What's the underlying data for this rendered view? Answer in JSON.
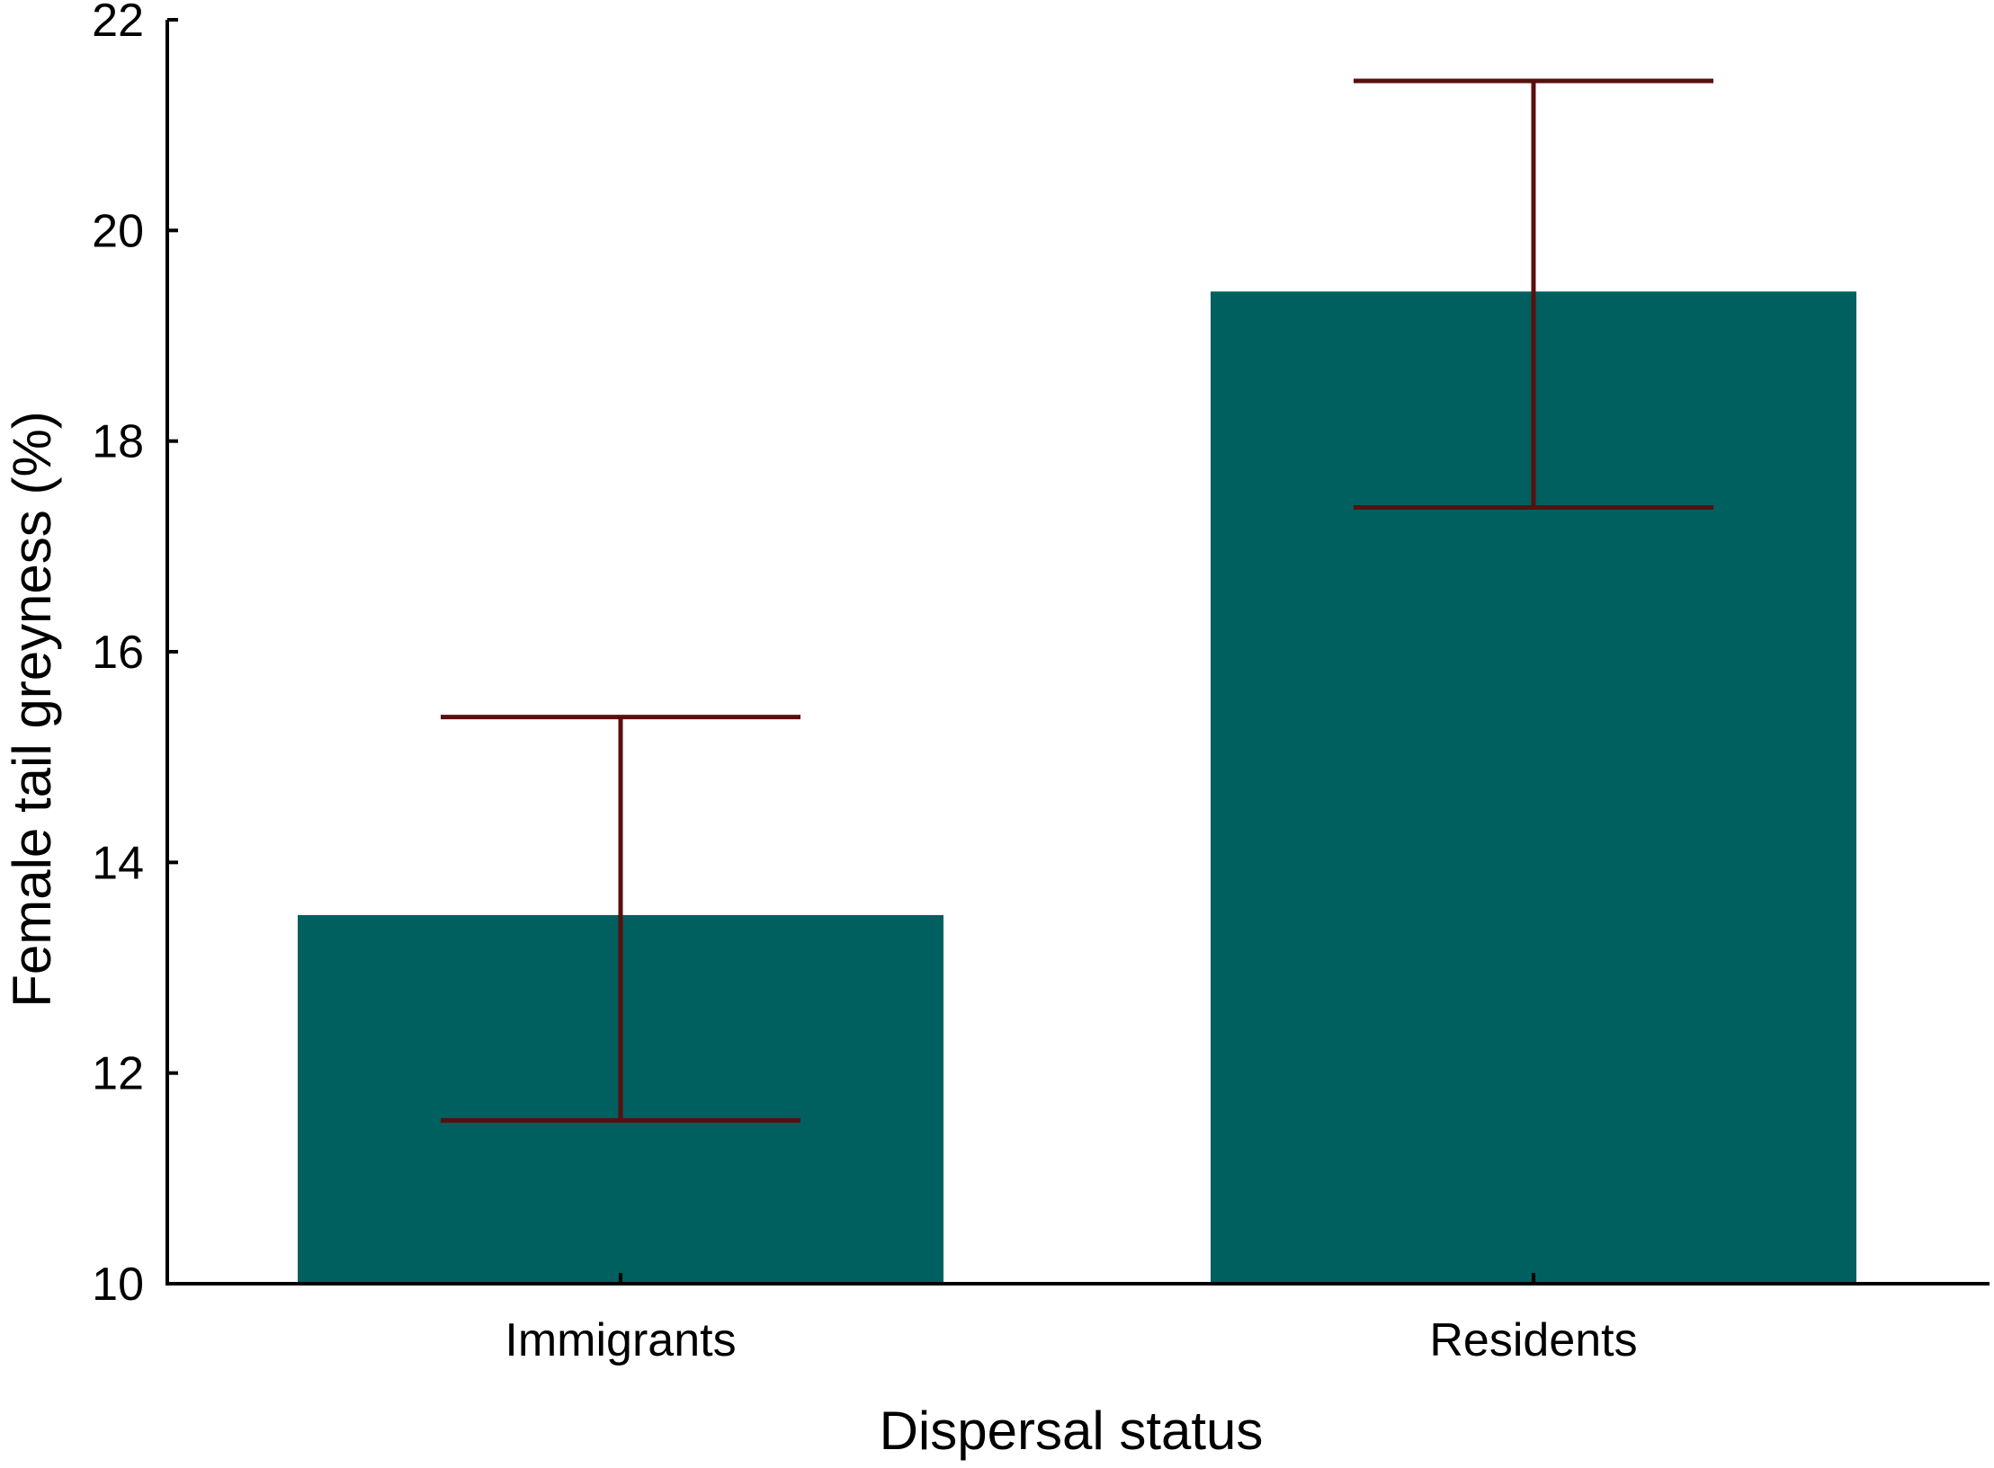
{
  "chart_data": {
    "type": "bar",
    "title": "",
    "xlabel": "Dispersal status",
    "ylabel": "Female tail greyness (%)",
    "categories": [
      "Immigrants",
      "Residents"
    ],
    "values": [
      13.5,
      19.42
    ],
    "error_low": [
      11.55,
      17.37
    ],
    "error_high": [
      15.38,
      21.42
    ],
    "ylim": [
      10,
      22
    ],
    "yticks": [
      "10",
      "12",
      "14",
      "16",
      "18",
      "20",
      "22"
    ],
    "grid": false,
    "legend": "none",
    "bar_color": "#005f5f",
    "error_color": "#5a0f0f",
    "axis_color": "#000000"
  }
}
